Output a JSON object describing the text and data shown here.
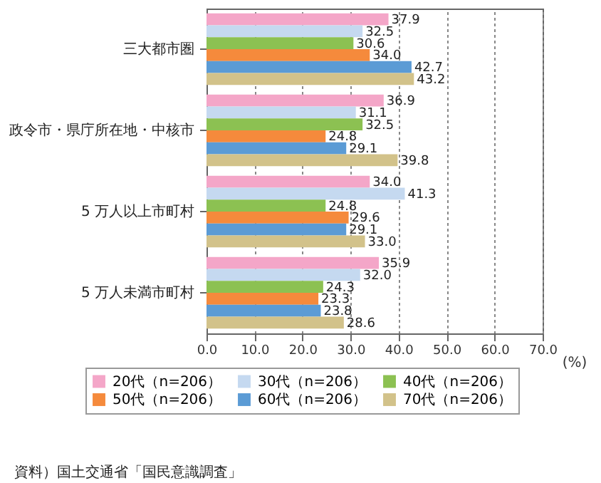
{
  "chart_data": {
    "type": "bar",
    "orientation": "horizontal",
    "xlabel": "(%)",
    "categories": [
      "三大都市圏",
      "政令市・県庁所在地・中核市",
      "5 万人以上市町村",
      "5 万人未満市町村"
    ],
    "series": [
      {
        "name": "20代（n=206）",
        "color": "#f4a6c8",
        "values": [
          37.9,
          36.9,
          34.0,
          35.9
        ],
        "value_labels": [
          "37.9",
          "36.9",
          "34.0",
          "35.9"
        ]
      },
      {
        "name": "30代（n=206）",
        "color": "#c5d9f0",
        "values": [
          32.5,
          31.1,
          41.3,
          32.0
        ],
        "value_labels": [
          "32.5",
          "31.1",
          "41.3",
          "32.0"
        ]
      },
      {
        "name": "40代（n=206）",
        "color": "#8cc152",
        "values": [
          30.6,
          32.5,
          24.8,
          24.3
        ],
        "value_labels": [
          "30.6",
          "32.5",
          "24.8",
          "24.3"
        ]
      },
      {
        "name": "50代（n=206）",
        "color": "#f58a3c",
        "values": [
          34.0,
          24.8,
          29.6,
          23.3
        ],
        "value_labels": [
          "34.0",
          "24.8",
          "29.6",
          "23.3"
        ]
      },
      {
        "name": "60代（n=206）",
        "color": "#5b9bd5",
        "values": [
          42.7,
          29.1,
          29.1,
          23.8
        ],
        "value_labels": [
          "42.7",
          "29.1",
          "29.1",
          "23.8"
        ]
      },
      {
        "name": "70代（n=206）",
        "color": "#d2c28a",
        "values": [
          43.2,
          39.8,
          33.0,
          28.6
        ],
        "value_labels": [
          "43.2",
          "39.8",
          "33.0",
          "28.6"
        ]
      }
    ],
    "xlim": [
      0,
      70
    ],
    "xticks": [
      {
        "value": 0,
        "label": "0.0"
      },
      {
        "value": 10,
        "label": "10.0"
      },
      {
        "value": 20,
        "label": "20.0"
      },
      {
        "value": 30,
        "label": "30.0"
      },
      {
        "value": 40,
        "label": "40.0"
      },
      {
        "value": 50,
        "label": "50.0"
      },
      {
        "value": 60,
        "label": "60.0"
      },
      {
        "value": 70,
        "label": "70.0"
      }
    ],
    "grid": "x",
    "legend": "bottom",
    "annotations": [
      "資料）国土交通省「国民意識調査」"
    ]
  }
}
